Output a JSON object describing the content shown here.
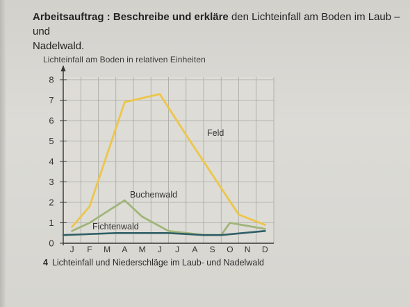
{
  "task": {
    "label": "Arbeitsauftrag :",
    "bold_text": "Beschreibe und erkläre",
    "text_line1": "den Lichteinfall am Boden im Laub – und",
    "text_line2": "Nadelwald."
  },
  "caption": {
    "number": "4",
    "text": "Lichteinfall und Niederschläge im Laub- und Nadelwald"
  },
  "chart_data": {
    "type": "line",
    "title": "Lichteinfall am Boden in relativen Einheiten",
    "xlabel": "",
    "ylabel": "",
    "categories": [
      "J",
      "F",
      "M",
      "A",
      "M",
      "J",
      "J",
      "A",
      "S",
      "O",
      "N",
      "D"
    ],
    "ylim": [
      0,
      8
    ],
    "yticks": [
      0,
      1,
      2,
      3,
      4,
      5,
      6,
      7,
      8
    ],
    "grid": true,
    "series": [
      {
        "name": "Feld",
        "color": "#ecc64a",
        "points": [
          [
            0.5,
            0.8
          ],
          [
            1.5,
            1.8
          ],
          [
            3.5,
            6.9
          ],
          [
            5.5,
            7.3
          ],
          [
            7.0,
            5.3
          ],
          [
            10.0,
            1.4
          ],
          [
            11.5,
            0.9
          ]
        ]
      },
      {
        "name": "Buchenwald",
        "color": "#9fb57a",
        "points": [
          [
            0.5,
            0.6
          ],
          [
            1.5,
            1.0
          ],
          [
            3.5,
            2.1
          ],
          [
            4.5,
            1.3
          ],
          [
            6.0,
            0.6
          ],
          [
            8.0,
            0.4
          ],
          [
            9.0,
            0.4
          ],
          [
            9.5,
            1.0
          ],
          [
            11.5,
            0.7
          ]
        ]
      },
      {
        "name": "Fichtenwald",
        "color": "#2f5f66",
        "points": [
          [
            0.0,
            0.4
          ],
          [
            3.0,
            0.5
          ],
          [
            6.0,
            0.5
          ],
          [
            8.0,
            0.4
          ],
          [
            9.0,
            0.4
          ],
          [
            11.5,
            0.6
          ]
        ]
      }
    ]
  }
}
